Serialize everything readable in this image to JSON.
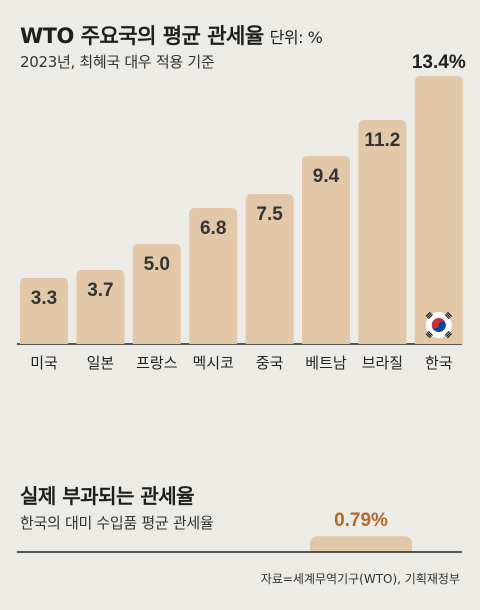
{
  "header": {
    "title": "WTO 주요국의 평균 관세율",
    "unit": "단위: %",
    "subtitle": "2023년, 최혜국 대우 적용 기준"
  },
  "chart_data": [
    {
      "type": "bar",
      "categories": [
        "미국",
        "일본",
        "프랑스",
        "멕시코",
        "중국",
        "베트남",
        "브라질",
        "한국"
      ],
      "values": [
        3.3,
        3.7,
        5.0,
        6.8,
        7.5,
        9.4,
        11.2,
        13.4
      ],
      "value_labels": [
        "3.3",
        "3.7",
        "5.0",
        "6.8",
        "7.5",
        "9.4",
        "11.2",
        "13.4%"
      ],
      "highlight": "한국",
      "ylim": [
        0,
        13.4
      ]
    },
    {
      "type": "bar",
      "categories": [
        ""
      ],
      "values": [
        0.79
      ],
      "value_labels": [
        "0.79%"
      ],
      "ylim": [
        0,
        13.4
      ]
    }
  ],
  "section2": {
    "title": "실제 부과되는 관세율",
    "subtitle": "한국의 대미 수입품 평균 관세율"
  },
  "source": "자료=세계무역기구(WTO), 기획재정부",
  "colors": {
    "background": "#ecebe6",
    "bar": "#e2c8a8",
    "axis": "#222222",
    "flag_red": "#cd2e3a",
    "flag_blue": "#0047a0"
  },
  "icons": {
    "korea": "korea-flag-icon"
  }
}
